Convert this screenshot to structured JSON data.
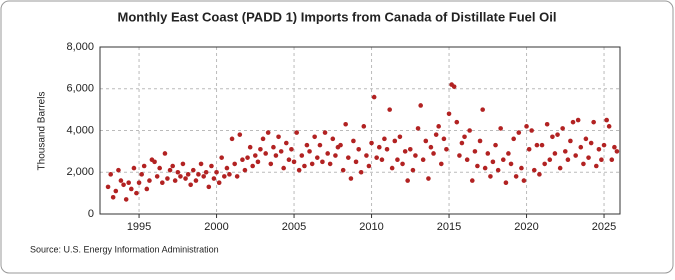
{
  "chart_data": {
    "type": "scatter",
    "title": "Monthly East Coast (PADD 1) Imports from Canada of Distillate Fuel Oil",
    "y_label": "Thousand Barrels",
    "source": "Source: U.S. Energy Information Administration",
    "color": "#b22222",
    "grid": true,
    "xlim": [
      1992.48,
      2026.03
    ],
    "ylim": [
      0,
      8000
    ],
    "xticks": [
      1995,
      2000,
      2005,
      2010,
      2015,
      2020,
      2025
    ],
    "yticks": [
      0,
      {
        "value": 2000,
        "label": "2,000"
      },
      {
        "value": 4000,
        "label": "4,000"
      },
      {
        "value": 6000,
        "label": "6,000"
      },
      {
        "value": 8000,
        "label": "8,000"
      }
    ],
    "x": [
      1993,
      1993.17,
      1993.33,
      1993.5,
      1993.67,
      1993.83,
      1994,
      1994.17,
      1994.33,
      1994.5,
      1994.67,
      1994.83,
      1995,
      1995.17,
      1995.33,
      1995.5,
      1995.67,
      1995.83,
      1996,
      1996.17,
      1996.33,
      1996.5,
      1996.67,
      1996.83,
      1997,
      1997.17,
      1997.33,
      1997.5,
      1997.67,
      1997.83,
      1998,
      1998.17,
      1998.33,
      1998.5,
      1998.67,
      1998.83,
      1999,
      1999.17,
      1999.33,
      1999.5,
      1999.67,
      1999.83,
      2000,
      2000.17,
      2000.33,
      2000.5,
      2000.67,
      2000.83,
      2001,
      2001.17,
      2001.33,
      2001.5,
      2001.67,
      2001.83,
      2002,
      2002.17,
      2002.33,
      2002.5,
      2002.67,
      2002.83,
      2003,
      2003.17,
      2003.33,
      2003.5,
      2003.67,
      2003.83,
      2004,
      2004.17,
      2004.33,
      2004.5,
      2004.67,
      2004.83,
      2005,
      2005.17,
      2005.33,
      2005.5,
      2005.67,
      2005.83,
      2006,
      2006.17,
      2006.33,
      2006.5,
      2006.67,
      2006.83,
      2007,
      2007.17,
      2007.33,
      2007.5,
      2007.67,
      2007.83,
      2008,
      2008.17,
      2008.33,
      2008.5,
      2008.67,
      2008.83,
      2009,
      2009.17,
      2009.33,
      2009.5,
      2009.67,
      2009.83,
      2010,
      2010.17,
      2010.33,
      2010.5,
      2010.67,
      2010.83,
      2011,
      2011.17,
      2011.33,
      2011.5,
      2011.67,
      2011.83,
      2012,
      2012.17,
      2012.33,
      2012.5,
      2012.67,
      2012.83,
      2013,
      2013.17,
      2013.33,
      2013.5,
      2013.67,
      2013.83,
      2014,
      2014.17,
      2014.33,
      2014.5,
      2014.67,
      2014.83,
      2015,
      2015.17,
      2015.33,
      2015.5,
      2015.67,
      2015.83,
      2016,
      2016.17,
      2016.33,
      2016.5,
      2016.67,
      2016.83,
      2017,
      2017.17,
      2017.33,
      2017.5,
      2017.67,
      2017.83,
      2018,
      2018.17,
      2018.33,
      2018.5,
      2018.67,
      2018.83,
      2019,
      2019.17,
      2019.33,
      2019.5,
      2019.67,
      2019.83,
      2020,
      2020.17,
      2020.33,
      2020.5,
      2020.67,
      2020.83,
      2021,
      2021.17,
      2021.33,
      2021.5,
      2021.67,
      2021.83,
      2022,
      2022.17,
      2022.33,
      2022.5,
      2022.67,
      2022.83,
      2023,
      2023.17,
      2023.33,
      2023.5,
      2023.67,
      2023.83,
      2024,
      2024.17,
      2024.33,
      2024.5,
      2024.67,
      2024.83,
      2025,
      2025.17,
      2025.33,
      2025.5,
      2025.67,
      2025.83
    ],
    "values": [
      1300,
      1900,
      800,
      1100,
      2100,
      1600,
      1400,
      700,
      1500,
      1200,
      2200,
      1000,
      1500,
      1900,
      2300,
      1200,
      1600,
      2600,
      2500,
      1800,
      2200,
      1500,
      2900,
      1700,
      2100,
      2300,
      1600,
      2000,
      1800,
      2400,
      1700,
      1900,
      1400,
      2100,
      1600,
      1900,
      2400,
      1800,
      2000,
      1300,
      2300,
      1700,
      2000,
      1500,
      2700,
      1800,
      2200,
      1900,
      3600,
      2400,
      1800,
      3800,
      2600,
      2100,
      2700,
      3200,
      2300,
      2800,
      2500,
      3100,
      3600,
      2900,
      3900,
      2400,
      3200,
      2800,
      3700,
      3000,
      2200,
      3400,
      2600,
      3100,
      2500,
      3900,
      2100,
      2800,
      2300,
      3300,
      3000,
      2400,
      3700,
      2700,
      3300,
      2500,
      3900,
      2900,
      2400,
      3600,
      2800,
      3200,
      3300,
      2100,
      4300,
      2700,
      1700,
      3500,
      2500,
      3100,
      2000,
      4200,
      2800,
      2300,
      3400,
      5600,
      2700,
      3200,
      2600,
      3600,
      3100,
      5000,
      2200,
      3500,
      2600,
      3700,
      2400,
      3000,
      1600,
      3100,
      2100,
      2800,
      4100,
      5200,
      2600,
      3500,
      1700,
      3200,
      2900,
      3800,
      4200,
      2400,
      3600,
      3100,
      4800,
      6200,
      6100,
      4400,
      2800,
      3400,
      3700,
      2600,
      4000,
      1600,
      3000,
      2300,
      3500,
      5000,
      2200,
      2900,
      1800,
      2500,
      3300,
      2100,
      4100,
      2600,
      1500,
      2900,
      2400,
      3600,
      1800,
      3900,
      2200,
      1600,
      4200,
      3100,
      4000,
      2100,
      3300,
      1900,
      3300,
      2400,
      4300,
      2600,
      3700,
      2900,
      3800,
      2200,
      4100,
      3000,
      2600,
      3500,
      4400,
      2800,
      4500,
      3200,
      2400,
      3600,
      2700,
      3400,
      4400,
      2300,
      3100,
      2600,
      3300,
      4500,
      4200,
      2600,
      3200,
      3000
    ]
  }
}
